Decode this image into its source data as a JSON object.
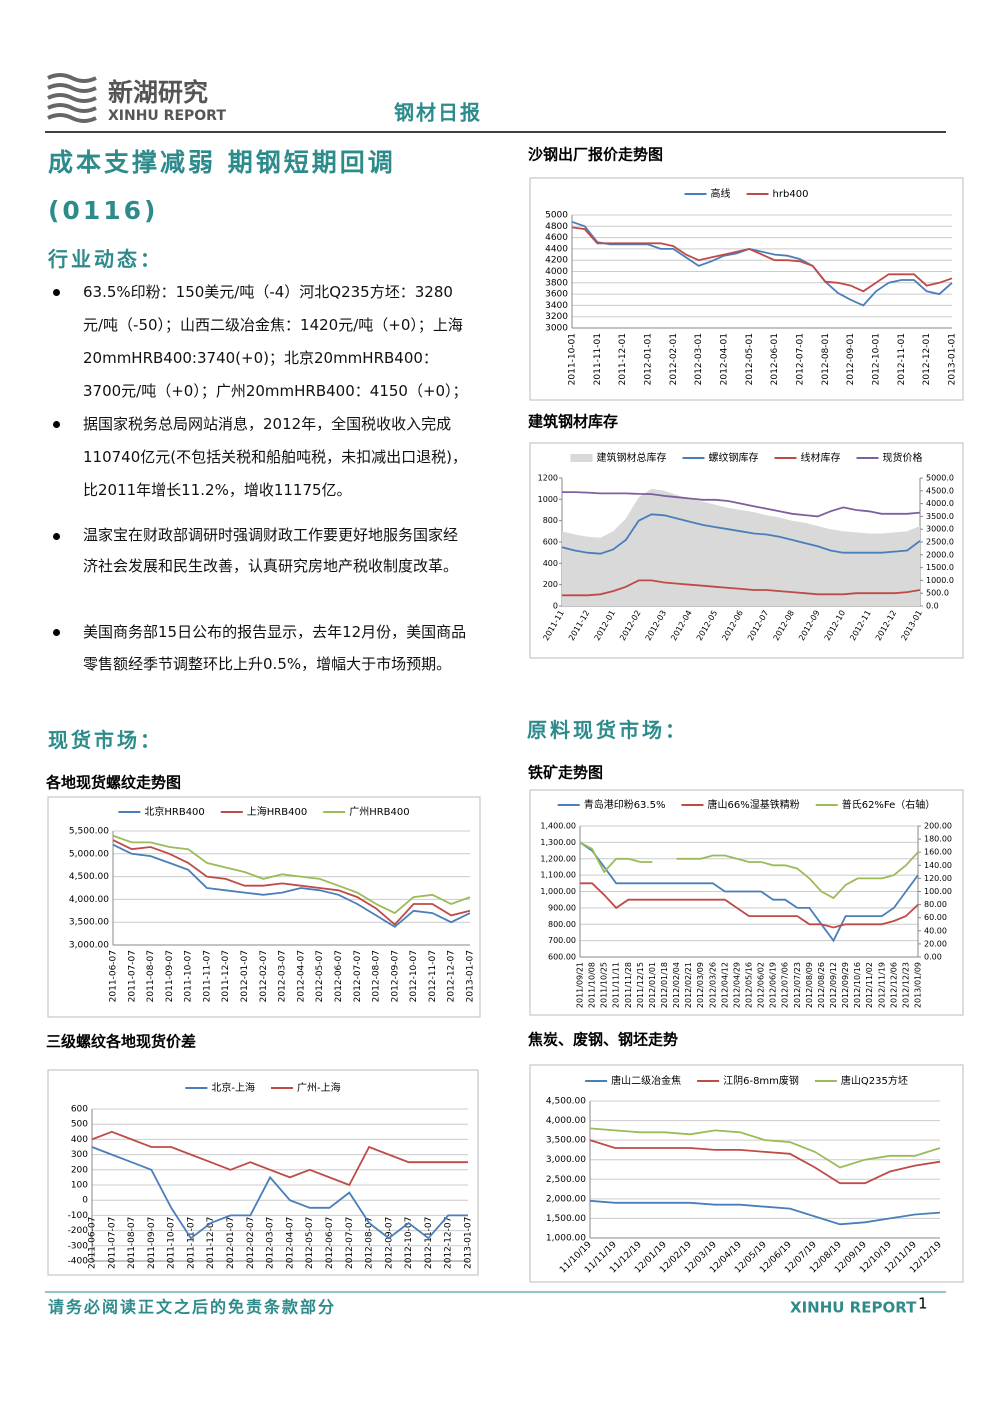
{
  "header": {
    "logo_cn": "新湖研究",
    "logo_en": "XINHU REPORT",
    "report": "钢材日报"
  },
  "title": "成本支撑减弱 期钢短期回调",
  "date": "(0116)",
  "news": {
    "heading": "行业动态：",
    "bullets": [
      "63.5%印粉：150美元/吨（-4）河北Q235方坯：3280元/吨（-50）；山西二级冶金焦：1420元/吨（+0）；上海20mmHRB400:3740(+0)；北京20mmHRB400：3700元/吨（+0）；广州20mmHRB400：4150（+0）；",
      "据国家税务总局网站消息，2012年，全国税收收入完成110740亿元(不包括关税和船舶吨税，未扣减出口退税)，比2011年增长11.2%，增收11175亿。",
      "温家宝在财政部调研时强调财政工作要更好地服务国家经济社会发展和民生改善，认真研究房地产税收制度改革。",
      "美国商务部15日公布的报告显示，去年12月份，美国商品零售额经季节调整环比上升0.5%，增幅大于市场预期。"
    ]
  },
  "spot_heading": "现货市场：",
  "raw_heading": "原料现货市场：",
  "charts": [
    {
      "type": "line",
      "title": "沙钢出厂报价走势图",
      "grid": true,
      "categories": [
        "2011-10-01",
        null,
        "2011-11-01",
        null,
        "2011-12-01",
        null,
        "2012-01-01",
        null,
        "2012-02-01",
        null,
        "2012-03-01",
        null,
        "2012-04-01",
        null,
        "2012-05-01",
        null,
        "2012-06-01",
        null,
        "2012-07-01",
        null,
        "2012-08-01",
        null,
        "2012-09-01",
        null,
        "2012-10-01",
        null,
        "2012-11-01",
        null,
        "2012-12-01",
        null,
        "2013-01-01"
      ],
      "ylim": [
        3000,
        5000
      ],
      "yticks": [
        3000,
        3200,
        3400,
        3600,
        3800,
        4000,
        4200,
        4400,
        4600,
        4800,
        5000
      ],
      "series": [
        {
          "name": "高线",
          "color": "#4a7ebb",
          "values": [
            4880,
            4800,
            4520,
            4480,
            4480,
            4480,
            4480,
            4400,
            4400,
            4250,
            4100,
            4180,
            4280,
            4320,
            4400,
            4350,
            4300,
            4280,
            4220,
            4100,
            3820,
            3620,
            3500,
            3400,
            3650,
            3800,
            3850,
            3850,
            3650,
            3600,
            3800
          ]
        },
        {
          "name": "hrb400",
          "color": "#be4b48",
          "values": [
            4780,
            4750,
            4500,
            4500,
            4500,
            4500,
            4500,
            4500,
            4450,
            4300,
            4200,
            4250,
            4300,
            4350,
            4400,
            4300,
            4200,
            4200,
            4180,
            4100,
            3820,
            3800,
            3750,
            3650,
            3800,
            3950,
            3950,
            3950,
            3750,
            3800,
            3880
          ]
        }
      ]
    },
    {
      "type": "line",
      "title": "建筑钢材库存",
      "grid": false,
      "categories": [
        "2011-11",
        null,
        "2011-12",
        null,
        "2012-01",
        null,
        "2012-02",
        null,
        "2012-03",
        null,
        "2012-04",
        null,
        "2012-05",
        null,
        "2012-06",
        null,
        "2012-07",
        null,
        "2012-08",
        null,
        "2012-09",
        null,
        "2012-10",
        null,
        "2012-11",
        null,
        "2012-12",
        null,
        "2013-01"
      ],
      "ylim": [
        0,
        1200
      ],
      "yticks": [
        0,
        200,
        400,
        600,
        800,
        1000,
        1200
      ],
      "y2lim": [
        0,
        5000
      ],
      "y2ticks": [
        {
          "value": 0,
          "label": "0.0"
        },
        {
          "value": 500,
          "label": "500.0"
        },
        {
          "value": 1000,
          "label": "1000.0"
        },
        {
          "value": 1500,
          "label": "1500.0"
        },
        {
          "value": 2000,
          "label": "2000.0"
        },
        {
          "value": 2500,
          "label": "2500.0"
        },
        {
          "value": 3000,
          "label": "3000.0"
        },
        {
          "value": 3500,
          "label": "3500.0"
        },
        {
          "value": 4000,
          "label": "4000.0"
        },
        {
          "value": 4500,
          "label": "4500.0"
        },
        {
          "value": 5000,
          "label": "5000.0"
        }
      ],
      "series": [
        {
          "name": "建筑钢材总库存",
          "color": "#d9d9d9",
          "area": true,
          "values": [
            700,
            670,
            650,
            640,
            700,
            820,
            1020,
            1100,
            1080,
            1040,
            1000,
            980,
            950,
            920,
            900,
            880,
            850,
            830,
            800,
            780,
            750,
            720,
            700,
            690,
            680,
            680,
            690,
            700,
            750
          ]
        },
        {
          "name": "螺纹钢库存",
          "color": "#4a7ebb",
          "values": [
            550,
            520,
            500,
            490,
            530,
            620,
            800,
            860,
            850,
            820,
            790,
            760,
            740,
            720,
            700,
            680,
            670,
            650,
            620,
            590,
            560,
            520,
            500,
            500,
            500,
            500,
            510,
            520,
            610
          ]
        },
        {
          "name": "线材库存",
          "color": "#be4b48",
          "values": [
            100,
            100,
            100,
            110,
            140,
            180,
            240,
            240,
            220,
            210,
            200,
            190,
            180,
            170,
            160,
            150,
            150,
            140,
            130,
            120,
            110,
            110,
            110,
            120,
            120,
            120,
            120,
            130,
            150
          ]
        },
        {
          "name": "现货价格",
          "color": "#7d60a0",
          "axis": "y2",
          "values": [
            4450,
            4450,
            4430,
            4400,
            4400,
            4400,
            4380,
            4370,
            4300,
            4250,
            4200,
            4150,
            4150,
            4100,
            4000,
            3900,
            3800,
            3700,
            3600,
            3550,
            3500,
            3700,
            3850,
            3750,
            3700,
            3600,
            3600,
            3600,
            3650
          ]
        }
      ]
    },
    {
      "type": "line",
      "title": "各地现货螺纹走势图",
      "grid": true,
      "categories": [
        "2011-06-07",
        "2011-07-07",
        "2011-08-07",
        "2011-09-07",
        "2011-10-07",
        "2011-11-07",
        "2011-12-07",
        "2012-01-07",
        "2012-02-07",
        "2012-03-07",
        "2012-04-07",
        "2012-05-07",
        "2012-06-07",
        "2012-07-07",
        "2012-08-07",
        "2012-09-07",
        "2012-10-07",
        "2012-11-07",
        "2012-12-07",
        "2013-01-07"
      ],
      "ylim": [
        3000,
        5500
      ],
      "yticks": [
        {
          "value": 3000,
          "label": "3,000.00"
        },
        {
          "value": 3500,
          "label": "3,500.00"
        },
        {
          "value": 4000,
          "label": "4,000.00"
        },
        {
          "value": 4500,
          "label": "4,500.00"
        },
        {
          "value": 5000,
          "label": "5,000.00"
        },
        {
          "value": 5500,
          "label": "5,500.00"
        }
      ],
      "series": [
        {
          "name": "北京HRB400",
          "color": "#4a7ebb",
          "values": [
            5200,
            5000,
            4950,
            4800,
            4650,
            4250,
            4200,
            4150,
            4100,
            4150,
            4250,
            4200,
            4100,
            3900,
            3650,
            3400,
            3750,
            3700,
            3500,
            3700
          ]
        },
        {
          "name": "上海HRB400",
          "color": "#be4b48",
          "values": [
            5300,
            5100,
            5150,
            5000,
            4800,
            4500,
            4450,
            4300,
            4300,
            4350,
            4300,
            4250,
            4200,
            4050,
            3800,
            3450,
            3900,
            3900,
            3650,
            3750
          ]
        },
        {
          "name": "广州HRB400",
          "color": "#9bbb59",
          "values": [
            5400,
            5250,
            5250,
            5150,
            5100,
            4800,
            4700,
            4600,
            4450,
            4550,
            4500,
            4450,
            4300,
            4150,
            3900,
            3700,
            4050,
            4100,
            3900,
            4050
          ]
        }
      ]
    },
    {
      "type": "line",
      "title": "三级螺纹各地现货价差",
      "grid": true,
      "categories": [
        "2011-06-07",
        "2011-07-07",
        "2011-08-07",
        "2011-09-07",
        "2011-10-07",
        "2011-11-07",
        "2011-12-07",
        "2012-01-07",
        "2012-02-07",
        "2012-03-07",
        "2012-04-07",
        "2012-05-07",
        "2012-06-07",
        "2012-07-07",
        "2012-08-07",
        "2012-09-07",
        "2012-10-07",
        "2012-11-07",
        "2012-12-07",
        "2013-01-07"
      ],
      "ylim": [
        -400,
        600
      ],
      "yticks": [
        -400,
        -300,
        -200,
        -100,
        0,
        100,
        200,
        300,
        400,
        500,
        600
      ],
      "series": [
        {
          "name": "北京-上海",
          "color": "#4a7ebb",
          "values": [
            350,
            300,
            250,
            200,
            -50,
            -250,
            -150,
            -100,
            -100,
            150,
            0,
            -50,
            -50,
            50,
            -150,
            -250,
            -150,
            -250,
            -100,
            -100
          ]
        },
        {
          "name": "广州-上海",
          "color": "#be4b48",
          "values": [
            400,
            450,
            400,
            350,
            350,
            300,
            250,
            200,
            250,
            200,
            150,
            200,
            150,
            100,
            350,
            300,
            250,
            250,
            250,
            250
          ]
        }
      ]
    },
    {
      "type": "line",
      "title": "铁矿走势图",
      "grid": true,
      "categories": [
        "2011/09/21",
        "2011/10/08",
        "2011/10/25",
        "2011/11/11",
        "2011/11/28",
        "2011/12/15",
        "2012/01/01",
        "2012/01/18",
        "2012/02/04",
        "2012/02/21",
        "2012/03/09",
        "2012/03/26",
        "2012/04/12",
        "2012/04/29",
        "2012/05/16",
        "2012/06/02",
        "2012/06/19",
        "2012/07/06",
        "2012/07/23",
        "2012/08/09",
        "2012/08/26",
        "2012/09/12",
        "2012/09/29",
        "2012/10/16",
        "2012/11/02",
        "2012/11/19",
        "2012/12/06",
        "2012/12/23",
        "2013/01/09"
      ],
      "ylim": [
        600,
        1400
      ],
      "yticks": [
        {
          "value": 600,
          "label": "600.00"
        },
        {
          "value": 700,
          "label": "700.00"
        },
        {
          "value": 800,
          "label": "800.00"
        },
        {
          "value": 900,
          "label": "900.00"
        },
        {
          "value": 1000,
          "label": "1,000.00"
        },
        {
          "value": 1100,
          "label": "1,100.00"
        },
        {
          "value": 1200,
          "label": "1,200.00"
        },
        {
          "value": 1300,
          "label": "1,300.00"
        },
        {
          "value": 1400,
          "label": "1,400.00"
        }
      ],
      "y2lim": [
        0,
        200
      ],
      "y2ticks": [
        {
          "value": 0,
          "label": "0.00"
        },
        {
          "value": 20,
          "label": "20.00"
        },
        {
          "value": 40,
          "label": "40.00"
        },
        {
          "value": 60,
          "label": "60.00"
        },
        {
          "value": 80,
          "label": "80.00"
        },
        {
          "value": 100,
          "label": "100.00"
        },
        {
          "value": 120,
          "label": "120.00"
        },
        {
          "value": 140,
          "label": "140.00"
        },
        {
          "value": 160,
          "label": "160.00"
        },
        {
          "value": 180,
          "label": "180.00"
        },
        {
          "value": 200,
          "label": "200.00"
        }
      ],
      "series": [
        {
          "name": "青岛港印粉63.5%",
          "color": "#4a7ebb",
          "values": [
            1300,
            1250,
            1150,
            1050,
            1050,
            1050,
            1050,
            1050,
            1050,
            1050,
            1050,
            1050,
            1000,
            1000,
            1000,
            1000,
            950,
            950,
            900,
            900,
            800,
            700,
            850,
            850,
            850,
            850,
            900,
            1000,
            1100
          ]
        },
        {
          "name": "唐山66%湿基铁精粉",
          "color": "#be4b48",
          "values": [
            1050,
            1050,
            980,
            900,
            950,
            950,
            950,
            950,
            950,
            950,
            950,
            950,
            950,
            900,
            850,
            850,
            850,
            850,
            850,
            800,
            800,
            780,
            800,
            800,
            800,
            800,
            820,
            850,
            920
          ]
        },
        {
          "name": "普氏62%Fe（右轴）",
          "color": "#9bbb59",
          "axis": "y2",
          "values": [
            175,
            165,
            130,
            150,
            150,
            145,
            145,
            null,
            150,
            150,
            150,
            155,
            155,
            150,
            145,
            145,
            140,
            140,
            135,
            120,
            100,
            90,
            110,
            120,
            120,
            120,
            125,
            140,
            160
          ]
        }
      ]
    },
    {
      "type": "line",
      "title": "焦炭、废钢、钢坯走势",
      "grid": true,
      "categories": [
        "11/10/19",
        "11/11/19",
        "11/12/19",
        "12/01/19",
        "12/02/19",
        "12/03/19",
        "12/04/19",
        "12/05/19",
        "12/06/19",
        "12/07/19",
        "12/08/19",
        "12/09/19",
        "12/10/19",
        "12/11/19",
        "12/12/19"
      ],
      "ylim": [
        1000,
        4500
      ],
      "yticks": [
        {
          "value": 1000,
          "label": "1,000.00"
        },
        {
          "value": 1500,
          "label": "1,500.00"
        },
        {
          "value": 2000,
          "label": "2,000.00"
        },
        {
          "value": 2500,
          "label": "2,500.00"
        },
        {
          "value": 3000,
          "label": "3,000.00"
        },
        {
          "value": 3500,
          "label": "3,500.00"
        },
        {
          "value": 4000,
          "label": "4,000.00"
        },
        {
          "value": 4500,
          "label": "4,500.00"
        }
      ],
      "series": [
        {
          "name": "唐山二级冶金焦",
          "color": "#4a7ebb",
          "values": [
            1950,
            1900,
            1900,
            1900,
            1900,
            1850,
            1850,
            1800,
            1750,
            1550,
            1350,
            1400,
            1500,
            1600,
            1650
          ]
        },
        {
          "name": "江阴6-8mm废钢",
          "color": "#be4b48",
          "values": [
            3500,
            3300,
            3300,
            3300,
            3300,
            3250,
            3250,
            3200,
            3150,
            2800,
            2400,
            2400,
            2700,
            2850,
            2950
          ]
        },
        {
          "name": "唐山Q235方坯",
          "color": "#9bbb59",
          "values": [
            3800,
            3750,
            3700,
            3700,
            3650,
            3750,
            3700,
            3500,
            3450,
            3200,
            2800,
            3000,
            3100,
            3100,
            3300
          ]
        }
      ]
    }
  ],
  "footer": {
    "disclaimer": "请务必阅读正文之后的免责条款部分",
    "brand": "XINHU REPORT",
    "page": 1
  }
}
